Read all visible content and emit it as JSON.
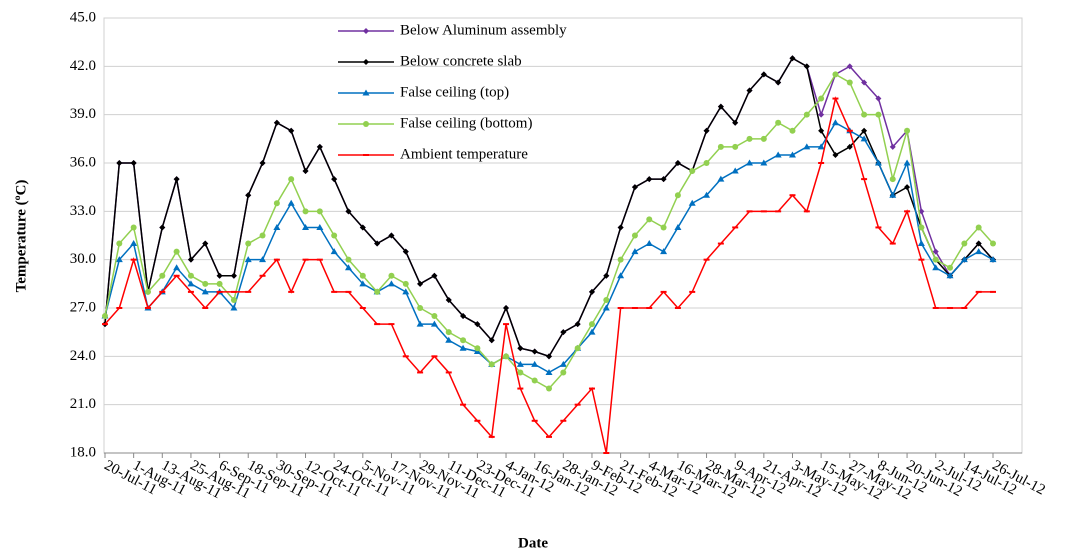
{
  "chart_data": {
    "type": "line",
    "xlabel": "Date",
    "ylabel": "Temperature (ºC)",
    "categories": [
      "20-Jul-11",
      null,
      "1-Aug-11",
      null,
      "13-Aug-11",
      null,
      "25-Aug-11",
      null,
      "6-Sep-11",
      null,
      "18-Sep-11",
      null,
      "30-Sep-11",
      null,
      "12-Oct-11",
      null,
      "24-Oct-11",
      null,
      "5-Nov-11",
      null,
      "17-Nov-11",
      null,
      "29-Nov-11",
      null,
      "11-Dec-11",
      null,
      "23-Dec-11",
      null,
      "4-Jan-12",
      null,
      "16-Jan-12",
      null,
      "28-Jan-12",
      null,
      "9-Feb-12",
      null,
      "21-Feb-12",
      null,
      "4-Mar-12",
      null,
      "16-Mar-12",
      null,
      "28-Mar-12",
      null,
      "9-Apr-12",
      null,
      "21-Apr-12",
      null,
      "3-May-12",
      null,
      "15-May-12",
      null,
      "27-May-12",
      null,
      "8-Jun-12",
      null,
      "20-Jun-12",
      null,
      "2-Jul-12",
      null,
      "14-Jul-12",
      null,
      "26-Jul-12"
    ],
    "series": [
      {
        "name": "Below Aluminum assembly",
        "color": "#7030a0",
        "marker": "diamond",
        "values": [
          26,
          36,
          36,
          28,
          32,
          35,
          30,
          31,
          29,
          29,
          34,
          36,
          38.5,
          38,
          35.5,
          37,
          35,
          33,
          32,
          31,
          31.5,
          30.5,
          28.5,
          29,
          27.5,
          26.5,
          26,
          25,
          27,
          24.5,
          24.3,
          24,
          25.5,
          26,
          28,
          29,
          32,
          34.5,
          35,
          35,
          36,
          35.5,
          38,
          39.5,
          38.5,
          40.5,
          41.5,
          41,
          42.5,
          42,
          39,
          41.5,
          42,
          41,
          40,
          37,
          38,
          33,
          30.5,
          29,
          30,
          31,
          30
        ]
      },
      {
        "name": "Below concrete slab",
        "color": "#000000",
        "marker": "diamond",
        "values": [
          26,
          36,
          36,
          28,
          32,
          35,
          30,
          31,
          29,
          29,
          34,
          36,
          38.5,
          38,
          35.5,
          37,
          35,
          33,
          32,
          31,
          31.5,
          30.5,
          28.5,
          29,
          27.5,
          26.5,
          26,
          25,
          27,
          24.5,
          24.3,
          24,
          25.5,
          26,
          28,
          29,
          32,
          34.5,
          35,
          35,
          36,
          35.5,
          38,
          39.5,
          38.5,
          40.5,
          41.5,
          41,
          42.5,
          42,
          38,
          36.5,
          37,
          38,
          36,
          34,
          34.5,
          32,
          30,
          29,
          30,
          31,
          30
        ]
      },
      {
        "name": "False ceiling  (top)",
        "color": "#0070c0",
        "marker": "triangle",
        "values": [
          26.5,
          30,
          31,
          27,
          28,
          29.5,
          28.5,
          28,
          28,
          27,
          30,
          30,
          32,
          33.5,
          32,
          32,
          30.5,
          29.5,
          28.5,
          28,
          28.5,
          28,
          26,
          26,
          25,
          24.5,
          24.3,
          23.5,
          24,
          23.5,
          23.5,
          23,
          23.5,
          24.5,
          25.5,
          27,
          29,
          30.5,
          31,
          30.5,
          32,
          33.5,
          34,
          35,
          35.5,
          36,
          36,
          36.5,
          36.5,
          37,
          37,
          38.5,
          38,
          37.5,
          36,
          34,
          36,
          31,
          29.5,
          29,
          30,
          30.5,
          30
        ]
      },
      {
        "name": "False ceiling  (bottom)",
        "color": "#92d050",
        "marker": "circle",
        "values": [
          26.5,
          31,
          32,
          28,
          29,
          30.5,
          29,
          28.5,
          28.5,
          27.5,
          31,
          31.5,
          33.5,
          35,
          33,
          33,
          31.5,
          30,
          29,
          28,
          29,
          28.5,
          27,
          26.5,
          25.5,
          25,
          24.5,
          23.5,
          24,
          23,
          22.5,
          22,
          23,
          24.5,
          26,
          27.5,
          30,
          31.5,
          32.5,
          32,
          34,
          35.5,
          36,
          37,
          37,
          37.5,
          37.5,
          38.5,
          38,
          39,
          40,
          41.5,
          41,
          39,
          39,
          35,
          38,
          32,
          30,
          29.5,
          31,
          32,
          31
        ]
      },
      {
        "name": "Ambient temperature",
        "color": "#ff0000",
        "marker": "dash",
        "values": [
          26,
          27,
          30,
          27,
          28,
          29,
          28,
          27,
          28,
          28,
          28,
          29,
          30,
          28,
          30,
          30,
          28,
          28,
          27,
          26,
          26,
          24,
          23,
          24,
          23,
          21,
          20,
          19,
          26,
          22,
          20,
          19,
          20,
          21,
          22,
          18,
          27,
          27,
          27,
          28,
          27,
          28,
          30,
          31,
          32,
          33,
          33,
          33,
          34,
          33,
          36,
          40,
          38,
          35,
          32,
          31,
          33,
          30,
          27,
          27,
          27,
          28,
          28
        ]
      }
    ],
    "ylim": [
      18,
      45
    ],
    "yticks": [
      {
        "value": 18,
        "label": "18.0"
      },
      {
        "value": 21,
        "label": "21.0"
      },
      {
        "value": 24,
        "label": "24.0"
      },
      {
        "value": 27,
        "label": "27.0"
      },
      {
        "value": 30,
        "label": "30.0"
      },
      {
        "value": 33,
        "label": "33.0"
      },
      {
        "value": 36,
        "label": "36.0"
      },
      {
        "value": 39,
        "label": "39.0"
      },
      {
        "value": 42,
        "label": "42.0"
      },
      {
        "value": 45,
        "label": "45.0"
      }
    ],
    "grid": true
  }
}
